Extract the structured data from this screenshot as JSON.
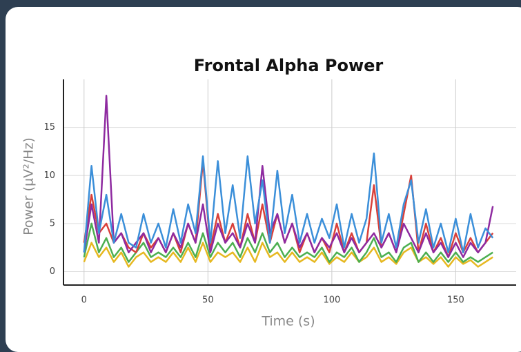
{
  "chart_data": {
    "type": "line",
    "title": "Frontal Alpha Power",
    "x_label": "Time (s)",
    "y_label": "Power (µV²/Hz)",
    "x": [
      0,
      3,
      6,
      9,
      12,
      15,
      18,
      21,
      24,
      27,
      30,
      33,
      36,
      39,
      42,
      45,
      48,
      51,
      54,
      57,
      60,
      63,
      66,
      69,
      72,
      75,
      78,
      81,
      84,
      87,
      90,
      93,
      96,
      99,
      102,
      105,
      108,
      111,
      114,
      117,
      120,
      123,
      126,
      129,
      132,
      135,
      138,
      141,
      144,
      147,
      150,
      153,
      156,
      159,
      162,
      165
    ],
    "series": [
      {
        "color": "#e6b820",
        "values": [
          1,
          3,
          1.5,
          2.5,
          1,
          2,
          0.5,
          1.5,
          2,
          1,
          1.5,
          1,
          2,
          1,
          2.5,
          1,
          3,
          1,
          2,
          1.5,
          2,
          1,
          2.5,
          1,
          3,
          1.5,
          2,
          1,
          2,
          1,
          1.5,
          1,
          2,
          0.8,
          1.5,
          1,
          2,
          1,
          1.5,
          2.5,
          1,
          1.5,
          0.8,
          2,
          2.5,
          1,
          1.5,
          0.8,
          1.5,
          0.5,
          1.5,
          0.8,
          1.2,
          0.5,
          1,
          1.5
        ]
      },
      {
        "color": "#4caf50",
        "values": [
          1.5,
          5,
          2,
          3.5,
          1.5,
          2.5,
          1,
          2,
          3,
          1.5,
          2,
          1.5,
          2.5,
          1.5,
          3,
          1.5,
          4,
          1.5,
          3,
          2,
          3,
          1.5,
          3.5,
          2,
          4,
          2,
          3,
          1.5,
          2.5,
          1.5,
          2,
          1.5,
          2.5,
          1,
          2,
          1.5,
          2.5,
          1,
          2,
          3.5,
          1.5,
          2,
          1,
          2.5,
          3,
          1,
          2,
          1,
          2,
          1,
          2,
          1,
          1.5,
          1,
          1.5,
          2
        ]
      },
      {
        "color": "#d9403a",
        "values": [
          3,
          8,
          4,
          5,
          3,
          4,
          2.5,
          2,
          4,
          2.5,
          3.5,
          2,
          4,
          2,
          5,
          3,
          11.5,
          2.5,
          6,
          3,
          5,
          2.5,
          6,
          3,
          7,
          3,
          6,
          3,
          5,
          2,
          4,
          2,
          3.5,
          2,
          5,
          2,
          4,
          2,
          3,
          9,
          2.5,
          4,
          2,
          6,
          10,
          2,
          5,
          2,
          3.5,
          1.5,
          4,
          2,
          3.5,
          2,
          3,
          4
        ]
      },
      {
        "color": "#8e2aa0",
        "values": [
          2,
          7,
          3,
          18.3,
          3,
          4,
          2,
          3,
          4,
          2,
          3.5,
          2,
          4,
          2.5,
          5,
          3,
          7,
          2,
          5,
          3,
          4,
          2.5,
          5,
          3,
          11,
          4,
          6,
          3,
          5,
          2.5,
          4,
          2,
          3.5,
          2.5,
          4,
          2,
          3.5,
          2,
          3,
          4,
          2.5,
          4,
          2,
          5,
          3.5,
          2,
          4,
          2,
          3,
          1.5,
          3,
          1.5,
          3,
          2,
          3,
          6.8
        ]
      },
      {
        "color": "#3b8fd9",
        "values": [
          2,
          11,
          4,
          8,
          3,
          6,
          3,
          2.5,
          6,
          3,
          5,
          2.5,
          6.5,
          3,
          7,
          4,
          12,
          3,
          11.5,
          4,
          9,
          3.5,
          12,
          5,
          9.5,
          3,
          10.5,
          4,
          8,
          3,
          6,
          3,
          5.5,
          3.5,
          7,
          2.5,
          6,
          3,
          5.5,
          12.3,
          3,
          6,
          2.5,
          7,
          9.5,
          3,
          6.5,
          2.5,
          5,
          2,
          5.5,
          2,
          6,
          2.5,
          4.5,
          3.5
        ]
      }
    ],
    "xlim": [
      -8.3,
      174.4
    ],
    "ylim": [
      -1.4,
      20
    ],
    "xticks": [
      0,
      50,
      100,
      150
    ],
    "yticks": [
      0,
      5,
      10,
      15
    ],
    "grid": true
  }
}
